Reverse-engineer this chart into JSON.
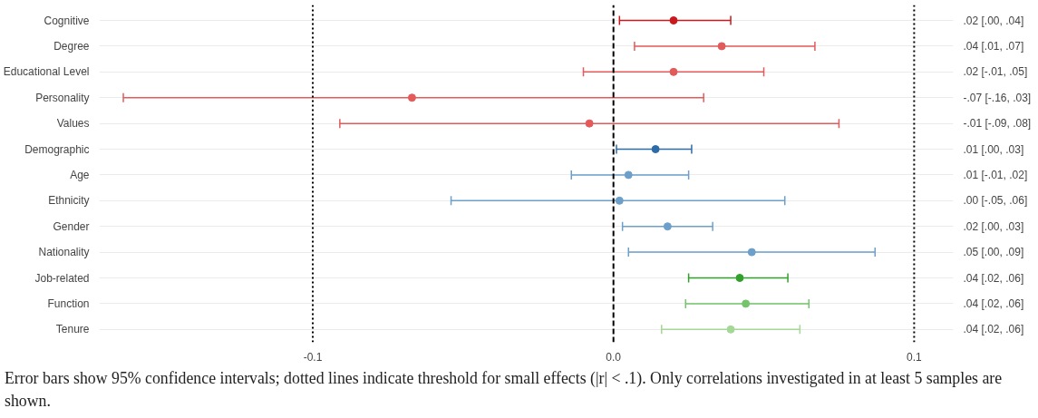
{
  "chart_data": {
    "type": "scatter",
    "orientation": "horizontal",
    "categories": [
      "Cognitive",
      "Degree",
      "Educational Level",
      "Personality",
      "Values",
      "Demographic",
      "Age",
      "Ethnicity",
      "Gender",
      "Nationality",
      "Job-related",
      "Function",
      "Tenure"
    ],
    "values": [
      0.02,
      0.036,
      0.02,
      -0.067,
      -0.008,
      0.014,
      0.005,
      0.002,
      0.018,
      0.046,
      0.042,
      0.044,
      0.039
    ],
    "errors": [
      [
        0.002,
        0.039
      ],
      [
        0.007,
        0.067
      ],
      [
        -0.01,
        0.05
      ],
      [
        -0.163,
        0.03
      ],
      [
        -0.091,
        0.075
      ],
      [
        0.001,
        0.026
      ],
      [
        -0.014,
        0.025
      ],
      [
        -0.054,
        0.057
      ],
      [
        0.003,
        0.033
      ],
      [
        0.005,
        0.087
      ],
      [
        0.025,
        0.058
      ],
      [
        0.024,
        0.065
      ],
      [
        0.016,
        0.062
      ]
    ],
    "colors": [
      "#cb181d",
      "#e35a5a",
      "#e35a5a",
      "#e35a5a",
      "#e35a5a",
      "#2d6ca8",
      "#6d9fcb",
      "#6d9fcb",
      "#6d9fcb",
      "#6d9fcb",
      "#33a02c",
      "#74c46b",
      "#a5d896"
    ],
    "value_labels": [
      ".02 [.00, .04]",
      ".04 [.01, .07]",
      ".02 [-.01, .05]",
      "-.07 [-.16, .03]",
      "-.01 [-.09, .08]",
      ".01 [.00, .03]",
      ".01 [-.01, .02]",
      ".00 [-.05, .06]",
      ".02 [.00, .03]",
      ".05 [.00, .09]",
      ".04 [.02, .06]",
      ".04 [.02, .06]",
      ".04 [.02, .06]"
    ],
    "xlim": [
      -0.171,
      0.113
    ],
    "xticks": [
      {
        "value": -0.1,
        "label": "-0.1"
      },
      {
        "value": 0,
        "label": "0.0"
      },
      {
        "value": 0.1,
        "label": "0.1"
      }
    ],
    "ref_lines": [
      {
        "axis": "x",
        "value": 0,
        "line_style": "dashed",
        "color": "#000000"
      },
      {
        "axis": "x",
        "value": -0.1,
        "line_style": "dotted",
        "color": "#000000"
      },
      {
        "axis": "x",
        "value": 0.1,
        "line_style": "dotted",
        "color": "#000000"
      }
    ],
    "grid": true,
    "marker": "circle",
    "annotations": [
      "Error bars show 95% confidence intervals; dotted lines indicate threshold for small effects (|r| < .1). Only correlations investigated in at least 5 samples are shown."
    ]
  }
}
